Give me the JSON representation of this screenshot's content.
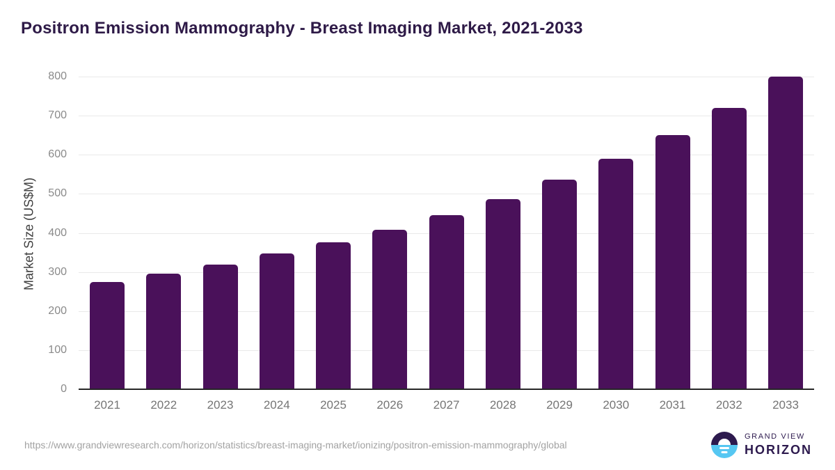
{
  "header": {
    "title": "Positron Emission Mammography - Breast Imaging Market, 2021-2033"
  },
  "chart_data": {
    "type": "bar",
    "title": "Positron Emission Mammography - Breast Imaging Market, 2021-2033",
    "categories": [
      "2021",
      "2022",
      "2023",
      "2024",
      "2025",
      "2026",
      "2027",
      "2028",
      "2029",
      "2030",
      "2031",
      "2032",
      "2033"
    ],
    "values": [
      276,
      297,
      321,
      349,
      377,
      410,
      447,
      489,
      538,
      591,
      652,
      722,
      802
    ],
    "xlabel": "",
    "ylabel": "Market Size (US$M)",
    "ylim": [
      0,
      800
    ],
    "yticks": [
      0,
      100,
      200,
      300,
      400,
      500,
      600,
      700,
      800
    ],
    "grid": true,
    "legend": "none",
    "bar_color": "#4a115a"
  },
  "colors": {
    "title_text": "#2e1a47",
    "bar": "#4a115a",
    "gridline": "#e9e9e9",
    "axis_line": "#262626",
    "ytick_text": "#8a8a8a",
    "xtick_text": "#757575",
    "axis_title_text": "#3f3f3f",
    "source_text": "#a2a2a2",
    "logo_purple": "#2d1a4e",
    "logo_blue": "#56c7f2"
  },
  "footer": {
    "source_url": "https://www.grandviewresearch.com/horizon/statistics/breast-imaging-market/ionizing/positron-emission-mammography/global",
    "logo": {
      "line1": "GRAND VIEW",
      "line2": "HORIZON"
    }
  }
}
